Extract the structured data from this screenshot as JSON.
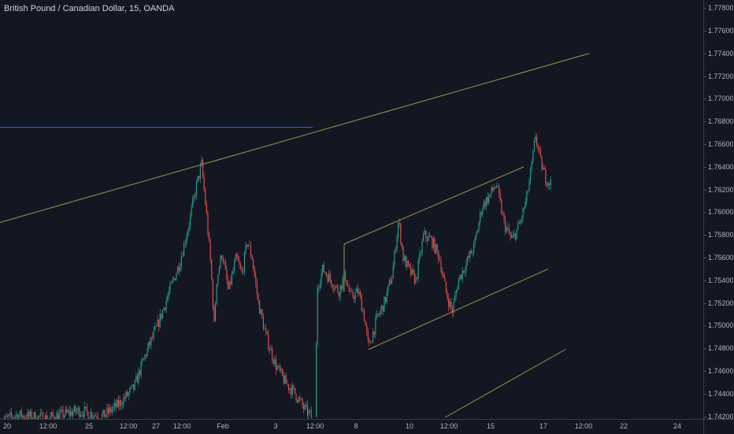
{
  "header": {
    "title": "British Pound / Canadian Dollar, 15, OANDA"
  },
  "colors": {
    "background": "#131722",
    "up": "#26a69a",
    "down": "#ef5350",
    "trendline": "#a39541",
    "horizontal_line": "#2962ff",
    "axis_text": "#b2b5be"
  },
  "chart_data": {
    "type": "candlestick",
    "title": "British Pound / Canadian Dollar, 15, OANDA",
    "symbol": "GBPCAD",
    "interval": "15",
    "source": "OANDA",
    "x_ticks": [
      "20",
      "12:00",
      "25",
      "12:00",
      "27",
      "12:00",
      "Feb",
      "3",
      "12:00",
      "8",
      "10",
      "12:00",
      "15",
      "17",
      "12:00",
      "22",
      "24"
    ],
    "y_ticks": [
      "1.77800",
      "1.77600",
      "1.77400",
      "1.77200",
      "1.77000",
      "1.76800",
      "1.76600",
      "1.76400",
      "1.76200",
      "1.76000",
      "1.75800",
      "1.75600",
      "1.75400",
      "1.75200",
      "1.75000",
      "1.74800",
      "1.74600",
      "1.74400",
      "1.74200"
    ],
    "ylim": [
      1.7419,
      1.7783
    ],
    "grid": false,
    "price_path": [
      [
        0,
        1.7415
      ],
      [
        20,
        1.7421
      ],
      [
        60,
        1.7418
      ],
      [
        100,
        1.7425
      ],
      [
        130,
        1.742
      ],
      [
        150,
        1.743
      ],
      [
        170,
        1.7445
      ],
      [
        185,
        1.7475
      ],
      [
        200,
        1.75
      ],
      [
        215,
        1.753
      ],
      [
        228,
        1.7555
      ],
      [
        240,
        1.759
      ],
      [
        250,
        1.7625
      ],
      [
        256,
        1.7642
      ],
      [
        262,
        1.76
      ],
      [
        268,
        1.755
      ],
      [
        272,
        1.75
      ],
      [
        275,
        1.754
      ],
      [
        282,
        1.7565
      ],
      [
        290,
        1.753
      ],
      [
        300,
        1.756
      ],
      [
        307,
        1.7545
      ],
      [
        314,
        1.7575
      ],
      [
        320,
        1.756
      ],
      [
        328,
        1.752
      ],
      [
        338,
        1.749
      ],
      [
        350,
        1.7465
      ],
      [
        362,
        1.745
      ],
      [
        375,
        1.744
      ],
      [
        385,
        1.7428
      ],
      [
        395,
        1.742
      ],
      [
        400,
        1.742
      ],
      [
        403,
        1.7535
      ],
      [
        410,
        1.755
      ],
      [
        420,
        1.754
      ],
      [
        430,
        1.753
      ],
      [
        438,
        1.7545
      ],
      [
        445,
        1.7525
      ],
      [
        455,
        1.753
      ],
      [
        462,
        1.751
      ],
      [
        468,
        1.748
      ],
      [
        478,
        1.7505
      ],
      [
        488,
        1.752
      ],
      [
        498,
        1.7545
      ],
      [
        506,
        1.7593
      ],
      [
        512,
        1.756
      ],
      [
        520,
        1.7548
      ],
      [
        528,
        1.754
      ],
      [
        538,
        1.758
      ],
      [
        548,
        1.7575
      ],
      [
        558,
        1.756
      ],
      [
        566,
        1.753
      ],
      [
        574,
        1.7512
      ],
      [
        582,
        1.754
      ],
      [
        592,
        1.7555
      ],
      [
        602,
        1.757
      ],
      [
        612,
        1.7605
      ],
      [
        622,
        1.7615
      ],
      [
        630,
        1.7625
      ],
      [
        640,
        1.759
      ],
      [
        650,
        1.7575
      ],
      [
        660,
        1.759
      ],
      [
        668,
        1.761
      ],
      [
        675,
        1.764
      ],
      [
        680,
        1.7668
      ],
      [
        686,
        1.7645
      ],
      [
        693,
        1.763
      ],
      [
        700,
        1.7625
      ]
    ],
    "annotations": [
      {
        "kind": "horizontal_ray",
        "price": 1.7675
      },
      {
        "kind": "trendline",
        "from": [
          0,
          1.7591
        ],
        "to": [
          748,
          1.774
        ]
      },
      {
        "kind": "trendline",
        "from": [
          437,
          1.7572
        ],
        "to": [
          665,
          1.764
        ]
      },
      {
        "kind": "trendline",
        "from": [
          468,
          1.7479
        ],
        "to": [
          696,
          1.755
        ]
      },
      {
        "kind": "trendline",
        "from": [
          565,
          1.7419
        ],
        "to": [
          718,
          1.7479
        ]
      },
      {
        "kind": "segment",
        "from": [
          437,
          1.7572
        ],
        "to": [
          437,
          1.753
        ]
      }
    ]
  }
}
